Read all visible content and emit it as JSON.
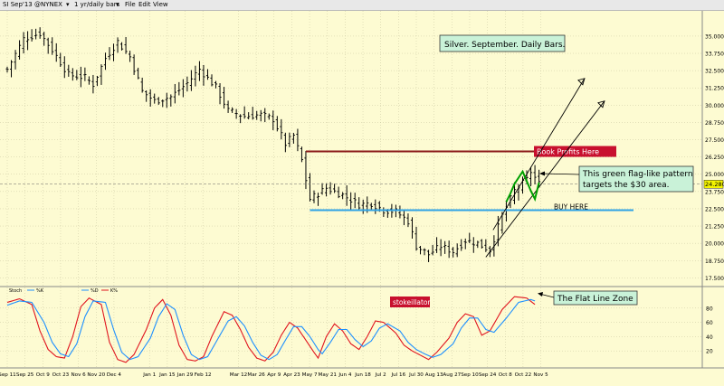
{
  "window": {
    "symbol_label": "SI Sep'13 @NYNEX",
    "dropdown_arrow": "▾",
    "interval_label": "1 yr/daily bars",
    "menu": [
      "File",
      "Edit",
      "View"
    ]
  },
  "chart_data": [
    {
      "type": "candlestick",
      "title": "Silver.  September.  Daily Bars.",
      "instrument": "SI Sep'13",
      "interval": "1 yr/daily bars",
      "y_axis_side": "right",
      "ylim": [
        17.0,
        36.5
      ],
      "yticks": [
        "35.000",
        "33.750",
        "32.500",
        "31.250",
        "30.000",
        "28.750",
        "27.500",
        "26.250",
        "25.000",
        "23.750",
        "22.500",
        "21.250",
        "20.000",
        "18.750",
        "17.500"
      ],
      "ytick_values": [
        35.0,
        33.75,
        32.5,
        31.25,
        30.0,
        28.75,
        27.5,
        26.25,
        25.0,
        23.75,
        22.5,
        21.25,
        20.0,
        18.75,
        17.5
      ],
      "last_price_label": "24.280",
      "last_price": 24.28,
      "grid": true,
      "price_anchors": [
        [
          0,
          32.6
        ],
        [
          4,
          34.8
        ],
        [
          8,
          35.2
        ],
        [
          11,
          34.0
        ],
        [
          15,
          32.2
        ],
        [
          19,
          32.0
        ],
        [
          21,
          31.5
        ],
        [
          24,
          33.4
        ],
        [
          27,
          34.6
        ],
        [
          30,
          33.5
        ],
        [
          33,
          31.0
        ],
        [
          36,
          30.3
        ],
        [
          40,
          30.6
        ],
        [
          44,
          31.6
        ],
        [
          47,
          32.6
        ],
        [
          51,
          31.3
        ],
        [
          54,
          29.6
        ],
        [
          58,
          29.2
        ],
        [
          62,
          29.3
        ],
        [
          65,
          29.0
        ],
        [
          68,
          27.2
        ],
        [
          70,
          27.8
        ],
        [
          72,
          26.0
        ],
        [
          74,
          23.2
        ],
        [
          78,
          24.0
        ],
        [
          82,
          23.5
        ],
        [
          86,
          22.8
        ],
        [
          89,
          22.9
        ],
        [
          92,
          22.4
        ],
        [
          95,
          22.3
        ],
        [
          98,
          21.6
        ],
        [
          100,
          19.8
        ],
        [
          103,
          19.2
        ],
        [
          106,
          19.8
        ],
        [
          109,
          19.4
        ],
        [
          112,
          20.2
        ],
        [
          115,
          20.0
        ],
        [
          118,
          19.5
        ],
        [
          121,
          22.0
        ],
        [
          124,
          23.8
        ],
        [
          127,
          24.6
        ],
        [
          128,
          25.2
        ],
        [
          130,
          24.3
        ]
      ],
      "annotations": [
        {
          "text": "Book Profits Here",
          "type": "horizontal-line",
          "price": 26.65,
          "start_index": 73,
          "color": "#8b1a1a"
        },
        {
          "text": "BUY HERE",
          "type": "horizontal-line",
          "price": 22.4,
          "start_index": 74,
          "color": "#2fa3e6"
        },
        {
          "text": "This green flag-like pattern targets the $30 area.",
          "type": "callout"
        },
        {
          "text": "up-channel",
          "type": "trend-channel",
          "start_index": 117,
          "start_price": 19.0,
          "end_index": 146,
          "end_price": 30.3
        }
      ],
      "colors": {
        "background": "#fdfbd2",
        "bars": "#000000",
        "flag": "#00a000",
        "profit_line": "#8b1a1a",
        "buy_line": "#2fa3e6"
      }
    },
    {
      "type": "line",
      "title": "stokeillator",
      "legend": [
        "Stoch",
        "%K",
        "%D",
        "K%"
      ],
      "ylim": [
        0,
        100
      ],
      "yticks": [
        "80",
        "60",
        "40",
        "20"
      ],
      "ytick_values": [
        80,
        60,
        40,
        20
      ],
      "series": [
        {
          "name": "K%",
          "color": "#e0141e",
          "values": [
            [
              0,
              88
            ],
            [
              3,
              93
            ],
            [
              6,
              85
            ],
            [
              8,
              48
            ],
            [
              10,
              22
            ],
            [
              12,
              12
            ],
            [
              14,
              10
            ],
            [
              16,
              40
            ],
            [
              18,
              82
            ],
            [
              20,
              94
            ],
            [
              23,
              85
            ],
            [
              25,
              32
            ],
            [
              27,
              8
            ],
            [
              29,
              4
            ],
            [
              31,
              15
            ],
            [
              34,
              50
            ],
            [
              36,
              80
            ],
            [
              38,
              92
            ],
            [
              40,
              70
            ],
            [
              42,
              28
            ],
            [
              44,
              8
            ],
            [
              46,
              6
            ],
            [
              48,
              12
            ],
            [
              50,
              40
            ],
            [
              53,
              75
            ],
            [
              55,
              70
            ],
            [
              57,
              50
            ],
            [
              59,
              25
            ],
            [
              61,
              10
            ],
            [
              63,
              6
            ],
            [
              65,
              18
            ],
            [
              67,
              42
            ],
            [
              69,
              60
            ],
            [
              71,
              52
            ],
            [
              73,
              35
            ],
            [
              75,
              18
            ],
            [
              76,
              10
            ],
            [
              78,
              40
            ],
            [
              80,
              58
            ],
            [
              82,
              48
            ],
            [
              84,
              30
            ],
            [
              86,
              22
            ],
            [
              88,
              40
            ],
            [
              90,
              62
            ],
            [
              92,
              60
            ],
            [
              95,
              45
            ],
            [
              97,
              28
            ],
            [
              99,
              20
            ],
            [
              101,
              14
            ],
            [
              103,
              8
            ],
            [
              105,
              18
            ],
            [
              108,
              38
            ],
            [
              110,
              60
            ],
            [
              112,
              72
            ],
            [
              114,
              68
            ],
            [
              116,
              42
            ],
            [
              118,
              48
            ],
            [
              121,
              78
            ],
            [
              124,
              96
            ],
            [
              127,
              94
            ],
            [
              129,
              85
            ]
          ]
        },
        {
          "name": "%D",
          "color": "#1e90ff",
          "values": [
            [
              0,
              84
            ],
            [
              3,
              90
            ],
            [
              6,
              88
            ],
            [
              9,
              60
            ],
            [
              11,
              32
            ],
            [
              13,
              16
            ],
            [
              15,
              12
            ],
            [
              17,
              30
            ],
            [
              19,
              68
            ],
            [
              21,
              90
            ],
            [
              24,
              88
            ],
            [
              26,
              50
            ],
            [
              28,
              18
            ],
            [
              30,
              8
            ],
            [
              32,
              12
            ],
            [
              35,
              38
            ],
            [
              37,
              68
            ],
            [
              39,
              86
            ],
            [
              41,
              78
            ],
            [
              43,
              42
            ],
            [
              45,
              15
            ],
            [
              47,
              8
            ],
            [
              49,
              12
            ],
            [
              51,
              32
            ],
            [
              54,
              62
            ],
            [
              56,
              68
            ],
            [
              58,
              55
            ],
            [
              60,
              32
            ],
            [
              62,
              14
            ],
            [
              64,
              8
            ],
            [
              66,
              15
            ],
            [
              68,
              35
            ],
            [
              70,
              54
            ],
            [
              72,
              54
            ],
            [
              74,
              40
            ],
            [
              76,
              22
            ],
            [
              77,
              16
            ],
            [
              79,
              32
            ],
            [
              81,
              50
            ],
            [
              83,
              50
            ],
            [
              85,
              36
            ],
            [
              87,
              26
            ],
            [
              89,
              34
            ],
            [
              91,
              52
            ],
            [
              93,
              58
            ],
            [
              96,
              48
            ],
            [
              98,
              32
            ],
            [
              100,
              22
            ],
            [
              102,
              16
            ],
            [
              104,
              11
            ],
            [
              106,
              15
            ],
            [
              109,
              30
            ],
            [
              111,
              52
            ],
            [
              113,
              66
            ],
            [
              115,
              66
            ],
            [
              117,
              50
            ],
            [
              119,
              46
            ],
            [
              122,
              66
            ],
            [
              125,
              88
            ],
            [
              128,
              92
            ],
            [
              129,
              90
            ]
          ]
        }
      ],
      "annotations": [
        {
          "text": "The Flat Line Zone",
          "type": "callout"
        }
      ]
    }
  ],
  "x_axis": {
    "labels": [
      "Sep 11",
      "Sep 25",
      "Oct 9",
      "Oct 23",
      "Nov 6",
      "Nov 20",
      "Dec 4",
      "Jan 1",
      "Jan 15",
      "Jan 29",
      "Feb 12",
      "Mar 12",
      "Mar 26",
      "Apr 9",
      "Apr 23",
      "May 7",
      "May 21",
      "Jun 4",
      "Jun 18",
      "Jul 2",
      "Jul 16",
      "Jul 30",
      "Aug 13",
      "Aug 27",
      "Sep 10",
      "Sep 24",
      "Oct 8",
      "Oct 22",
      "Nov 5"
    ],
    "label_index": [
      0,
      10,
      20,
      30,
      40,
      50,
      60,
      80,
      90,
      100,
      110,
      130,
      140,
      150,
      160,
      170,
      180,
      190,
      200,
      210,
      220,
      230,
      240,
      250,
      260,
      270,
      280,
      290,
      300
    ]
  }
}
